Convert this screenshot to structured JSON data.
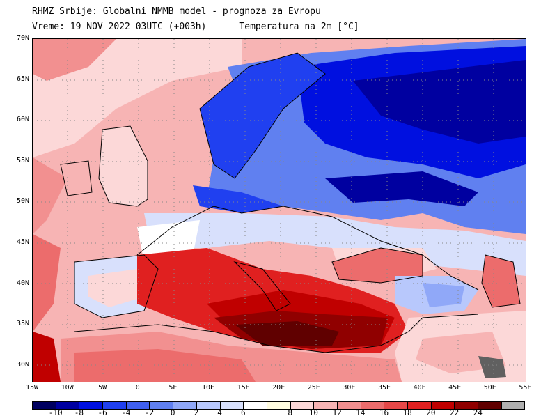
{
  "header": {
    "title_line1": "RHMZ Srbije: Globalni NMMB model - prognoza za Evropu",
    "title_line2": "Vreme: 19 NOV 2022 03UTC (+003h)      Temperatura na 2m [°C]"
  },
  "axes": {
    "lat_labels": [
      "70N",
      "65N",
      "60N",
      "55N",
      "50N",
      "45N",
      "40N",
      "35N",
      "30N"
    ],
    "lon_labels": [
      "15W",
      "10W",
      "5W",
      "0",
      "5E",
      "10E",
      "15E",
      "20E",
      "25E",
      "30E",
      "35E",
      "40E",
      "45E",
      "50E",
      "55E"
    ]
  },
  "colorbar": {
    "colors": [
      "#000060",
      "#0000a0",
      "#0010e0",
      "#2040f0",
      "#4060f0",
      "#6080f0",
      "#90a8f8",
      "#b8c8fc",
      "#d8e0fc",
      "#ffffff",
      "#fffce0",
      "#fcd8d8",
      "#f7b4b4",
      "#f29090",
      "#ec6c6c",
      "#e64848",
      "#e02020",
      "#c00000",
      "#900000",
      "#600000",
      "#b0b0b0"
    ],
    "labels": [
      "-10",
      "-8",
      "-6",
      "-4",
      "-2",
      "0",
      "2",
      "4",
      "6",
      "8",
      "10",
      "12",
      "14",
      "16",
      "18",
      "20",
      "22",
      "24"
    ]
  }
}
